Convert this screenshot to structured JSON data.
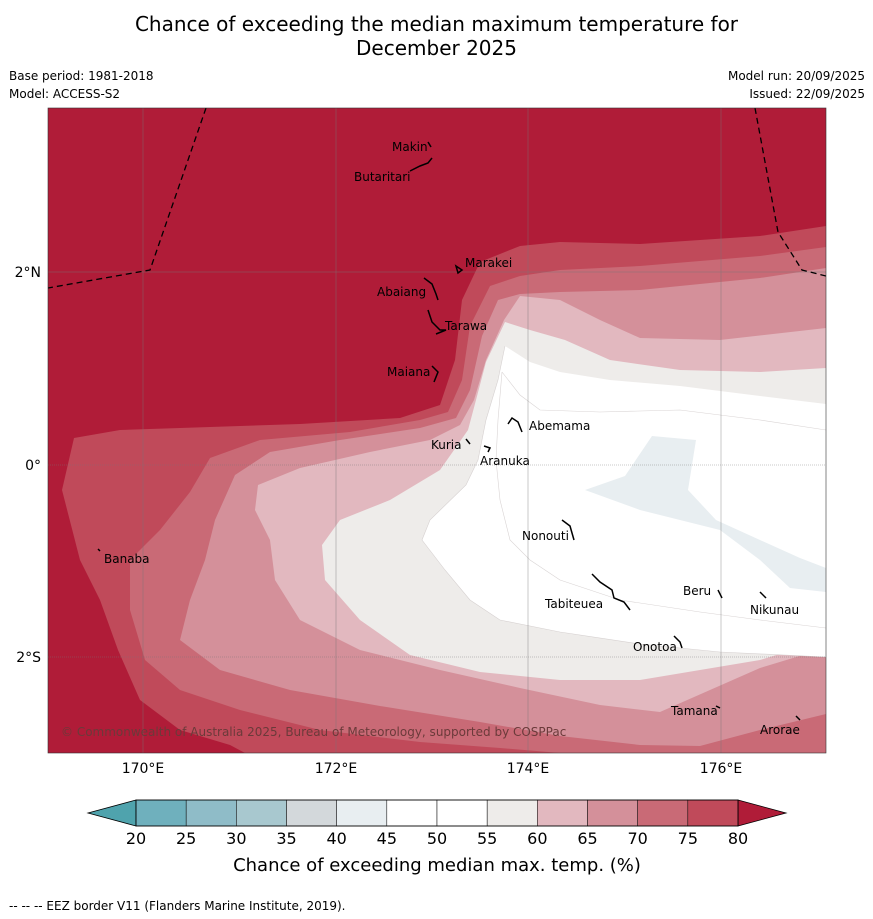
{
  "title_line1": "Chance of exceeding the median maximum temperature for",
  "title_line2": "December 2025",
  "base_period": "Base period: 1981-2018",
  "model": "Model: ACCESS-S2",
  "model_run": "Model run: 20/09/2025",
  "issued": "Issued: 22/09/2025",
  "lon_ticks": [
    "170°E",
    "172°E",
    "174°E",
    "176°E"
  ],
  "lat_ticks": [
    "2°N",
    "0°",
    "2°S"
  ],
  "places": {
    "makin": "Makin",
    "butaritari": "Butaritari",
    "marakei": "Marakei",
    "abaiang": "Abaiang",
    "tarawa": "Tarawa",
    "maiana": "Maiana",
    "abemama": "Abemama",
    "kuria": "Kuria",
    "aranuka": "Aranuka",
    "banaba": "Banaba",
    "nonouti": "Nonouti",
    "beru": "Beru",
    "tabiteuea": "Tabiteuea",
    "nikunau": "Nikunau",
    "onotoa": "Onotoa",
    "tamana": "Tamana",
    "arorae": "Arorae"
  },
  "copyright": "© Commonwealth of Australia 2025, Bureau of Meteorology, supported by COSPPac",
  "colorbar": {
    "ticks": [
      "20",
      "25",
      "30",
      "35",
      "40",
      "45",
      "50",
      "55",
      "60",
      "65",
      "70",
      "75",
      "80"
    ],
    "colors": [
      "#6fb0bd",
      "#8fbcc8",
      "#a8c8cf",
      "#d3d8db",
      "#e8eef1",
      "#ffffff",
      "#ffffff",
      "#eeecea",
      "#e2b8bf",
      "#d4909a",
      "#c96a76",
      "#c04a5a"
    ],
    "under_color": "#4fa3ad",
    "over_color": "#b01c38",
    "label": "Chance of exceeding median max. temp. (%)"
  },
  "footer": "--  --  -- EEZ border V11 (Flanders Marine Institute, 2019)."
}
